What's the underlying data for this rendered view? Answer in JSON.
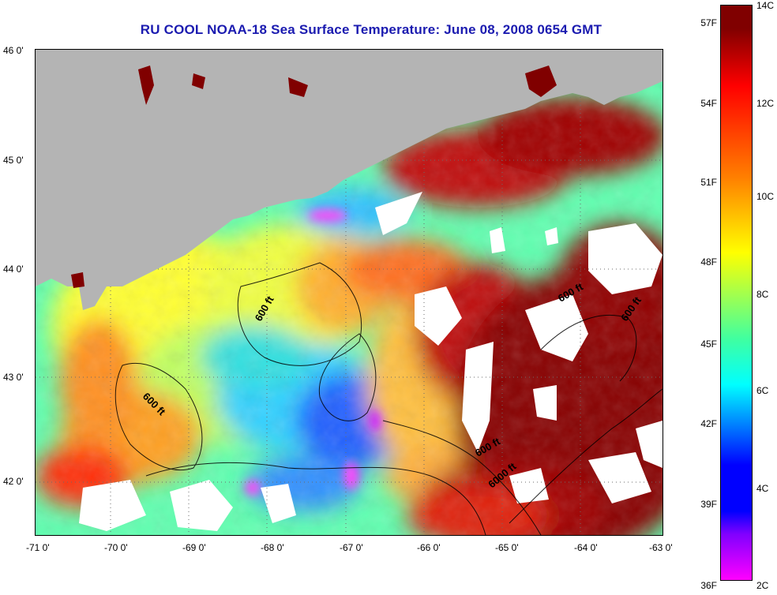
{
  "title": "RU COOL  NOAA-18  Sea Surface Temperature:  June 08, 2008 0654 GMT",
  "axes": {
    "y_ticks": [
      "46 0'",
      "45 0'",
      "44 0'",
      "43 0'",
      "42 0'"
    ],
    "x_ticks": [
      "-71 0'",
      "-70 0'",
      "-69 0'",
      "-68 0'",
      "-67 0'",
      "-66 0'",
      "-65 0'",
      "-64 0'",
      "-63 0'"
    ]
  },
  "contour_labels": [
    "600 ft",
    "600 ft",
    "600 ft",
    "600 ft",
    "600 ft",
    "6000 ft"
  ],
  "colorbar": {
    "fahrenheit_labels": [
      "57F",
      "54F",
      "51F",
      "48F",
      "45F",
      "42F",
      "39F",
      "36F"
    ],
    "celsius_labels": [
      "14C",
      "12C",
      "10C",
      "8C",
      "6C",
      "4C",
      "2C"
    ],
    "colors": {
      "top": "#800000",
      "red": "#ff0000",
      "orange": "#ff8000",
      "yellow": "#ffff00",
      "green": "#40ffa0",
      "cyan": "#00ffff",
      "blue": "#0000ff",
      "purple": "#8000ff",
      "magenta": "#ff00ff"
    }
  },
  "map_colors": {
    "land": "#b4b4b4",
    "cloud": "#ffffff",
    "gridline": "#6b6b6b"
  }
}
